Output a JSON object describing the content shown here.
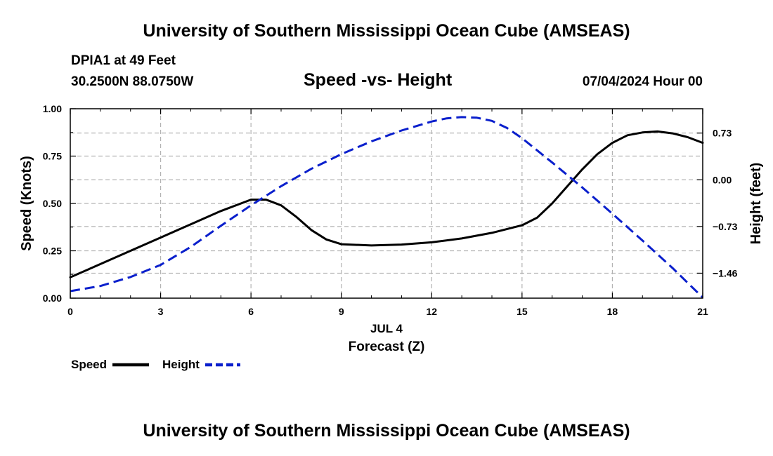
{
  "header": {
    "top_title": "University of Southern Mississippi Ocean Cube (AMSEAS)",
    "station": "DPIA1 at 49 Feet",
    "coords": "30.2500N  88.0750W",
    "datetime": "07/04/2024 Hour 00",
    "bottom_title": "University of Southern Mississippi Ocean Cube (AMSEAS)"
  },
  "legend": {
    "speed_label": "Speed",
    "height_label": "Height"
  },
  "colors": {
    "speed": "#000000",
    "height": "#0a1fcc",
    "grid": "#b3b3b3"
  },
  "chart_data": {
    "type": "line",
    "title": "Speed -vs- Height",
    "xlabel": "Forecast (Z)",
    "date_label": "JUL 4",
    "ylabel_left": "Speed (Knots)",
    "ylabel_right": "Height (feet)",
    "xlim": [
      0,
      21
    ],
    "ylim_left": [
      0,
      1.0
    ],
    "ylim_right": [
      -1.85,
      1.11
    ],
    "x_ticks": [
      0,
      3,
      6,
      9,
      12,
      15,
      18,
      21
    ],
    "y_ticks_left": [
      "0.00",
      "0.25",
      "0.50",
      "0.75",
      "1.00"
    ],
    "y_ticks_right": [
      "0.73",
      "0.00",
      "-0.73",
      "-1.46"
    ],
    "y_ticks_right_values": [
      0.73,
      0,
      -0.73,
      -1.46
    ],
    "series": [
      {
        "name": "Speed",
        "axis": "left",
        "style": "solid",
        "x": [
          0,
          1,
          2,
          3,
          4,
          5,
          6,
          6.5,
          7,
          7.5,
          8,
          8.5,
          9,
          10,
          11,
          12,
          13,
          14,
          15,
          15.5,
          16,
          16.5,
          17,
          17.5,
          18,
          18.5,
          19,
          19.5,
          20,
          20.5,
          21
        ],
        "values": [
          0.11,
          0.18,
          0.25,
          0.32,
          0.39,
          0.46,
          0.52,
          0.52,
          0.49,
          0.43,
          0.36,
          0.31,
          0.285,
          0.278,
          0.283,
          0.295,
          0.315,
          0.345,
          0.385,
          0.425,
          0.5,
          0.59,
          0.68,
          0.76,
          0.82,
          0.86,
          0.875,
          0.88,
          0.87,
          0.85,
          0.82
        ]
      },
      {
        "name": "Height",
        "axis": "right",
        "style": "dashed",
        "x": [
          0,
          1,
          2,
          3,
          4,
          5,
          6,
          7,
          8,
          9,
          10,
          11,
          12,
          12.5,
          13,
          13.5,
          14,
          14.5,
          15,
          16,
          17,
          18,
          19,
          20,
          21
        ],
        "values": [
          -1.74,
          -1.66,
          -1.52,
          -1.33,
          -1.05,
          -0.72,
          -0.4,
          -0.1,
          0.17,
          0.4,
          0.6,
          0.77,
          0.91,
          0.96,
          0.98,
          0.97,
          0.92,
          0.81,
          0.65,
          0.27,
          -0.12,
          -0.53,
          -0.95,
          -1.38,
          -1.84
        ]
      }
    ]
  }
}
